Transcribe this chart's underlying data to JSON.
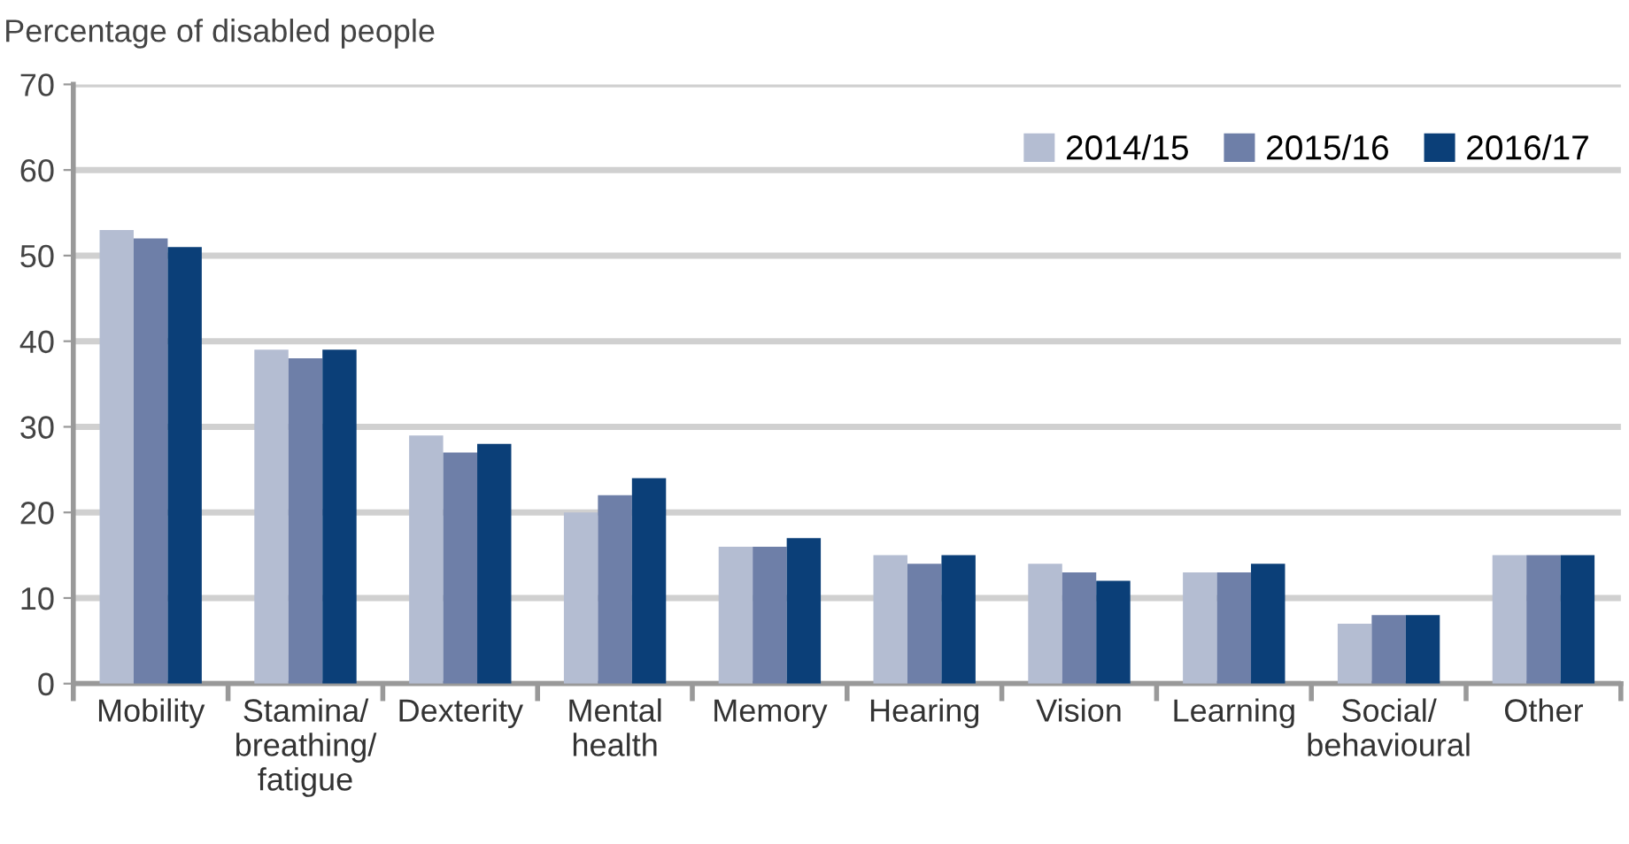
{
  "chart_data": {
    "type": "bar",
    "ylabel": "Percentage of disabled people",
    "categories": [
      "Mobility",
      "Stamina/\nbreathing/\nfatigue",
      "Dexterity",
      "Mental\nhealth",
      "Memory",
      "Hearing",
      "Vision",
      "Learning",
      "Social/\nbehavioural",
      "Other"
    ],
    "series": [
      {
        "name": "2014/15",
        "color": "#b4bdd2",
        "values": [
          53,
          39,
          29,
          20,
          16,
          15,
          14,
          13,
          7,
          15
        ]
      },
      {
        "name": "2015/16",
        "color": "#6e7fa8",
        "values": [
          52,
          38,
          27,
          22,
          16,
          14,
          13,
          13,
          8,
          15
        ]
      },
      {
        "name": "2016/17",
        "color": "#0b3f78",
        "values": [
          51,
          39,
          28,
          24,
          17,
          15,
          12,
          14,
          8,
          15
        ]
      }
    ],
    "ylim": [
      0,
      70
    ],
    "yticks": [
      0,
      10,
      20,
      30,
      40,
      50,
      60,
      70
    ],
    "grid": "y",
    "legend": "top right"
  }
}
